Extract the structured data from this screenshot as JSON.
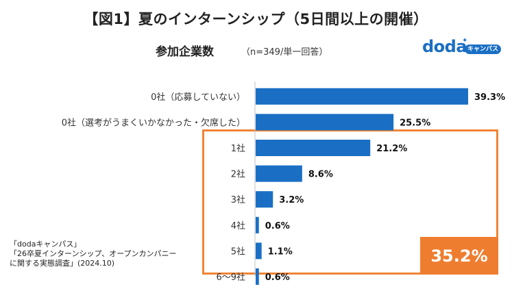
{
  "header": {
    "title": "【図1】夏のインターンシップ（5日間以上の開催）",
    "subtitle": "参加企業数",
    "note": "（n=349/単一回答）"
  },
  "logo": {
    "text": "doda",
    "badge": "キャンパス"
  },
  "chart_data": {
    "type": "bar",
    "orientation": "horizontal",
    "title": "夏のインターンシップ（5日間以上の開催）参加企業数",
    "categories": [
      "0社（応募していない）",
      "0社（選考がうまくいかなかった・欠席した）",
      "1社",
      "2社",
      "3社",
      "4社",
      "5社",
      "6～9社"
    ],
    "values": [
      39.3,
      25.5,
      21.2,
      8.6,
      3.2,
      0.6,
      1.1,
      0.6
    ],
    "value_labels": [
      "39.3%",
      "25.5%",
      "21.2%",
      "8.6%",
      "3.2%",
      "0.6%",
      "1.1%",
      "0.6%"
    ],
    "xlim": [
      0,
      45
    ],
    "bar_color": "#1a6fc4",
    "highlight": {
      "label": "35.2%",
      "color": "#ee7d30",
      "from_category": "1社"
    }
  },
  "source": {
    "line1": "「dodaキャンパス」",
    "line2": "「26卒夏インターンシップ、オープンカンパニー",
    "line3": "に関する実態調査」(2024.10)"
  }
}
